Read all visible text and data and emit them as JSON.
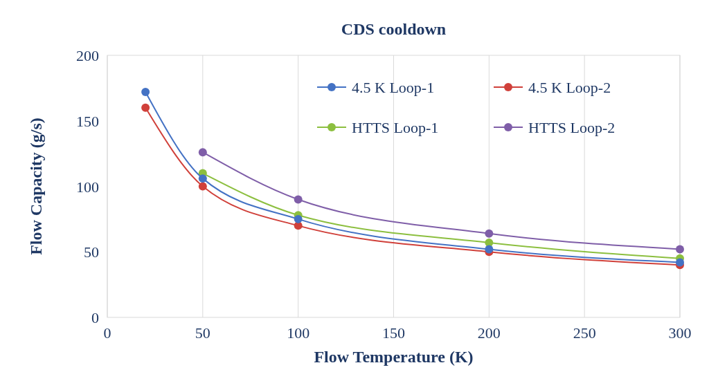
{
  "chart_data": {
    "type": "line",
    "title": "CDS cooldown",
    "xlabel": "Flow Temperature (K)",
    "ylabel": "Flow Capacity (g/s)",
    "xlim": [
      0,
      300
    ],
    "xticks": [
      0,
      50,
      100,
      150,
      200,
      250,
      300
    ],
    "ylim": [
      0,
      200
    ],
    "yticks": [
      0,
      50,
      100,
      150,
      200
    ],
    "grid": "x",
    "legend": "top right",
    "marker": "circle",
    "line_style": "solid",
    "series": [
      {
        "name": "4.5 K Loop-1",
        "color": "#4472c4",
        "x": [
          20,
          50,
          100,
          200,
          300
        ],
        "values": [
          172,
          106,
          75,
          52,
          42
        ]
      },
      {
        "name": "4.5 K Loop-2",
        "color": "#d0403a",
        "x": [
          20,
          50,
          100,
          200,
          300
        ],
        "values": [
          160,
          100,
          70,
          50,
          40
        ]
      },
      {
        "name": "HTTS Loop-1",
        "color": "#8cbf3f",
        "x": [
          50,
          100,
          200,
          300
        ],
        "values": [
          110,
          78,
          57,
          45
        ]
      },
      {
        "name": "HTTS Loop-2",
        "color": "#7f5ea8",
        "x": [
          50,
          100,
          200,
          300
        ],
        "values": [
          126,
          90,
          64,
          52
        ]
      }
    ]
  }
}
